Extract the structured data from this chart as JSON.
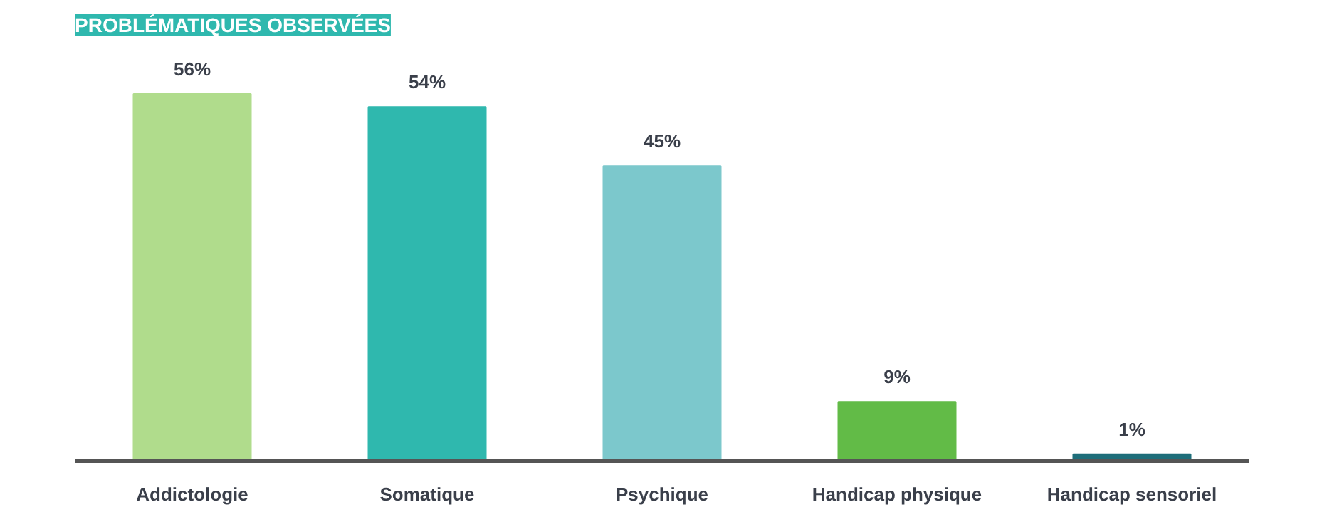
{
  "chart_data": {
    "type": "bar",
    "title": "PROBLÉMATIQUES OBSERVÉES",
    "categories": [
      "Addictologie",
      "Somatique",
      "Psychique",
      "Handicap physique",
      "Handicap sensoriel"
    ],
    "values": [
      56,
      54,
      45,
      9,
      1
    ],
    "value_labels": [
      "56%",
      "54%",
      "45%",
      "9%",
      "1%"
    ],
    "colors": [
      "#b0dc8c",
      "#2fb8ae",
      "#7cc8cc",
      "#62bb47",
      "#1e6e7a"
    ],
    "grid": false
  }
}
